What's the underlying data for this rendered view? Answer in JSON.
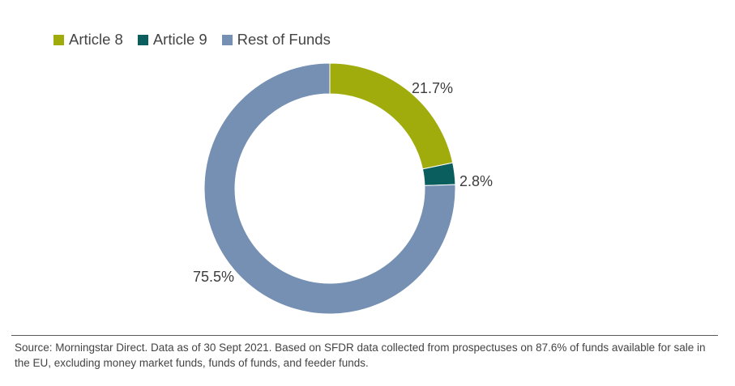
{
  "chart_data": {
    "type": "pie",
    "variant": "donut",
    "categories": [
      "Article 8",
      "Article 9",
      "Rest of Funds"
    ],
    "values": [
      21.7,
      2.8,
      75.5
    ],
    "value_labels": [
      "21.7%",
      "2.8%",
      "75.5%"
    ],
    "colors": [
      "#a0ac0c",
      "#0a5e5e",
      "#7590b2"
    ],
    "legend": {
      "placement": "top-left",
      "items": [
        "Article 8",
        "Article 9",
        "Rest of Funds"
      ]
    }
  },
  "footnote": {
    "source_text": "Source: Morningstar Direct. Data as of 30 Sept 2021. Based on SFDR data collected from prospectuses on 87.6% of funds available for sale in the EU, excluding money market funds, funds of funds, and feeder funds."
  }
}
